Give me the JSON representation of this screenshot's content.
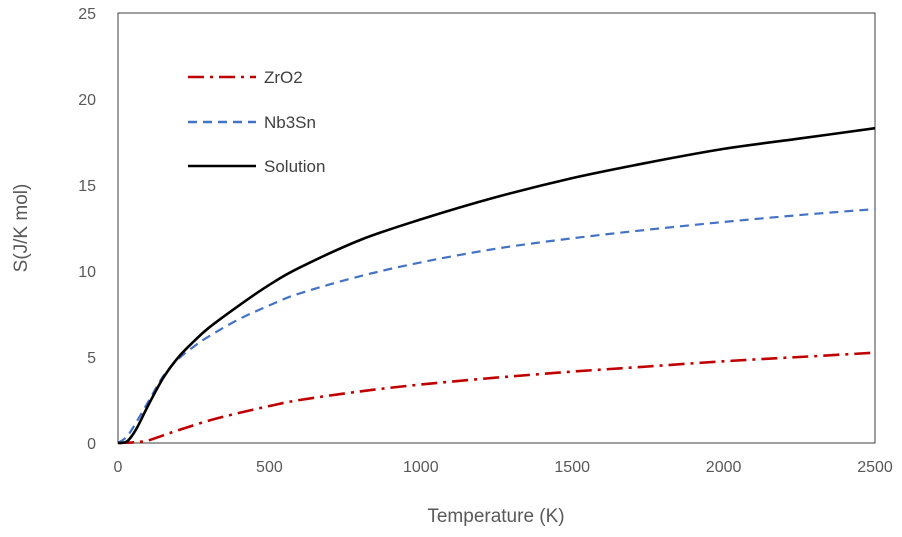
{
  "chart_data": {
    "type": "line",
    "title": "",
    "xlabel": "Temperature  (K)",
    "ylabel": "S(J/K mol)",
    "xlim": [
      0,
      2500
    ],
    "ylim": [
      0,
      25
    ],
    "xticks": [
      0,
      500,
      1000,
      1500,
      2000,
      2500
    ],
    "yticks": [
      0,
      5,
      10,
      15,
      20,
      25
    ],
    "grid": false,
    "legend_position": "top-left",
    "series": [
      {
        "name": "ZrO2",
        "color": "#c00000",
        "dash": "dash-dot",
        "x": [
          0,
          60,
          100,
          150,
          200,
          300,
          400,
          500,
          600,
          800,
          1000,
          1250,
          1500,
          1750,
          2000,
          2250,
          2500
        ],
        "y": [
          0,
          0.05,
          0.15,
          0.45,
          0.75,
          1.3,
          1.75,
          2.15,
          2.5,
          3.0,
          3.4,
          3.8,
          4.15,
          4.45,
          4.75,
          5.0,
          5.25
        ]
      },
      {
        "name": "Nb3Sn",
        "color": "#4472c4",
        "dash": "dashed",
        "x": [
          0,
          25,
          50,
          100,
          150,
          200,
          250,
          300,
          400,
          500,
          600,
          800,
          1000,
          1250,
          1500,
          1750,
          2000,
          2250,
          2500
        ],
        "y": [
          0,
          0.3,
          0.9,
          2.4,
          3.9,
          4.9,
          5.6,
          6.2,
          7.2,
          8.0,
          8.7,
          9.7,
          10.5,
          11.3,
          11.9,
          12.4,
          12.85,
          13.25,
          13.6
        ]
      },
      {
        "name": "Solution",
        "color": "#000000",
        "dash": "solid",
        "x": [
          0,
          30,
          60,
          100,
          150,
          200,
          250,
          300,
          400,
          500,
          600,
          800,
          1000,
          1250,
          1500,
          1750,
          2000,
          2250,
          2500
        ],
        "y": [
          0,
          0.1,
          0.8,
          2.2,
          3.8,
          5.0,
          5.9,
          6.7,
          8.0,
          9.2,
          10.2,
          11.8,
          13.0,
          14.3,
          15.4,
          16.3,
          17.1,
          17.7,
          18.3
        ]
      }
    ]
  }
}
